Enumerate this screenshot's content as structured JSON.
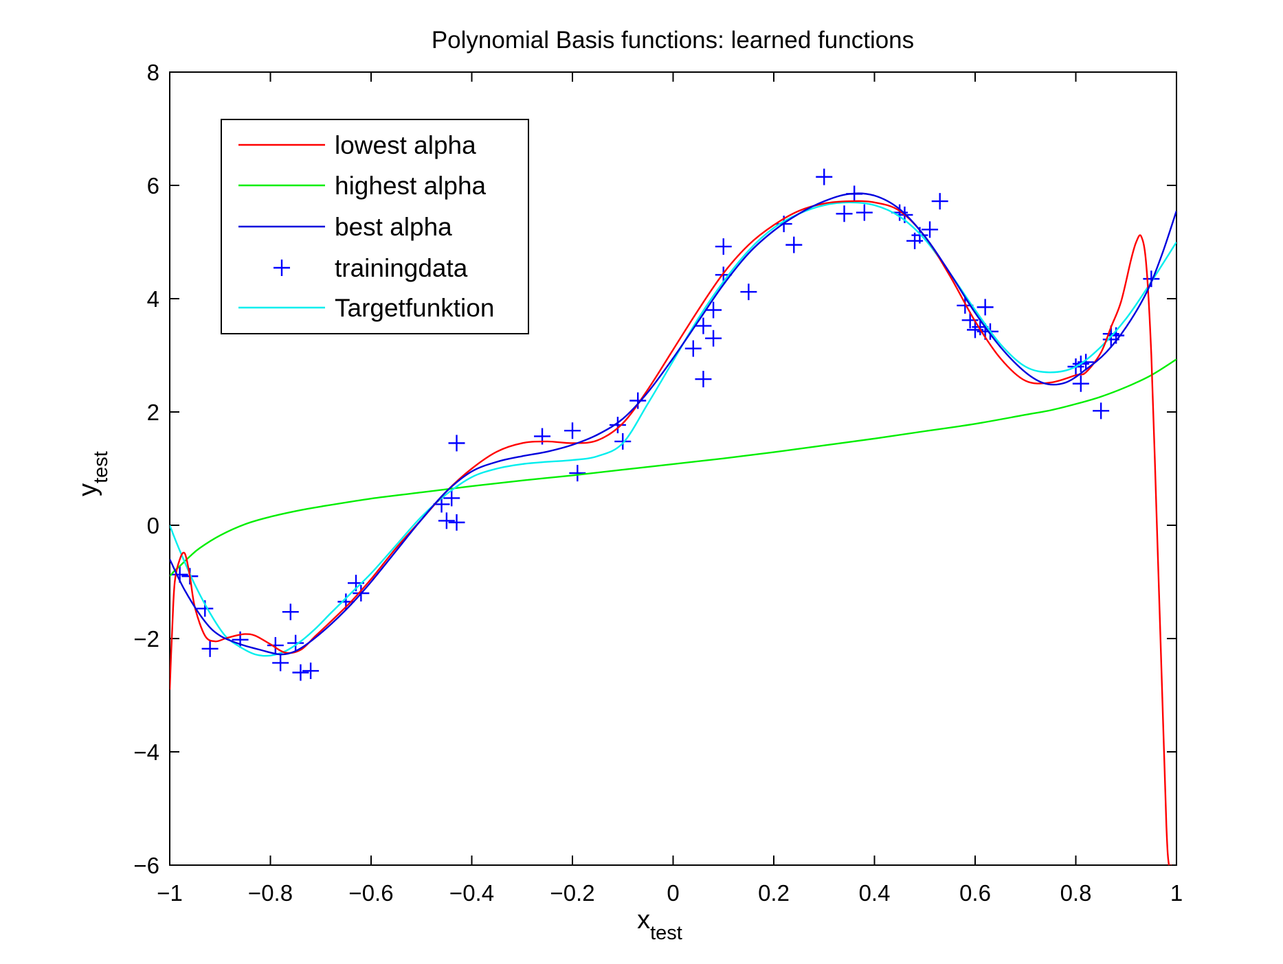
{
  "chart_data": {
    "type": "line",
    "title": "Polynomial Basis functions: learned functions",
    "xlabel": {
      "main": "x",
      "sub": "test"
    },
    "ylabel": {
      "main": "y",
      "sub": "test"
    },
    "xlim": [
      -1,
      1
    ],
    "ylim": [
      -6,
      8
    ],
    "xticks": [
      -1,
      -0.8,
      -0.6,
      -0.4,
      -0.2,
      0,
      0.2,
      0.4,
      0.6,
      0.8,
      1
    ],
    "xtick_labels": [
      "−1",
      "−0.8",
      "−0.6",
      "−0.4",
      "−0.2",
      "0",
      "0.2",
      "0.4",
      "0.6",
      "0.8",
      "1"
    ],
    "yticks": [
      -6,
      -4,
      -2,
      0,
      2,
      4,
      6,
      8
    ],
    "ytick_labels": [
      "−6",
      "−4",
      "−2",
      "0",
      "2",
      "4",
      "6",
      "8"
    ],
    "grid": false,
    "legend_position": "top-left",
    "series": [
      {
        "name": "lowest alpha",
        "style": "line",
        "color": "#ff0000",
        "x": [
          -1.0,
          -0.995,
          -0.99,
          -0.98,
          -0.97,
          -0.96,
          -0.95,
          -0.93,
          -0.91,
          -0.89,
          -0.87,
          -0.85,
          -0.83,
          -0.8,
          -0.77,
          -0.74,
          -0.71,
          -0.68,
          -0.64,
          -0.6,
          -0.55,
          -0.5,
          -0.45,
          -0.4,
          -0.35,
          -0.3,
          -0.25,
          -0.2,
          -0.15,
          -0.1,
          -0.05,
          0.0,
          0.05,
          0.1,
          0.15,
          0.2,
          0.25,
          0.3,
          0.35,
          0.4,
          0.45,
          0.5,
          0.55,
          0.6,
          0.65,
          0.7,
          0.75,
          0.8,
          0.82,
          0.85,
          0.87,
          0.89,
          0.91,
          0.92,
          0.93,
          0.94,
          0.95,
          0.96,
          0.97,
          0.98,
          0.985,
          0.99
        ],
        "y": [
          -2.9,
          -1.8,
          -1.0,
          -0.6,
          -0.5,
          -0.9,
          -1.45,
          -1.95,
          -2.05,
          -2.0,
          -1.95,
          -1.92,
          -1.95,
          -2.1,
          -2.25,
          -2.2,
          -1.95,
          -1.7,
          -1.35,
          -0.95,
          -0.4,
          0.1,
          0.6,
          1.0,
          1.3,
          1.45,
          1.48,
          1.45,
          1.5,
          1.8,
          2.4,
          3.1,
          3.8,
          4.45,
          4.95,
          5.3,
          5.55,
          5.68,
          5.72,
          5.7,
          5.55,
          5.1,
          4.4,
          3.6,
          2.95,
          2.55,
          2.52,
          2.65,
          2.7,
          3.05,
          3.5,
          3.95,
          4.7,
          5.0,
          5.1,
          4.6,
          3.0,
          0.3,
          -2.5,
          -5.3,
          -6.0,
          -6.0
        ]
      },
      {
        "name": "highest alpha",
        "style": "line",
        "color": "#00ee00",
        "x": [
          -1.0,
          -0.99,
          -0.98,
          -0.96,
          -0.94,
          -0.9,
          -0.85,
          -0.8,
          -0.75,
          -0.7,
          -0.6,
          -0.5,
          -0.4,
          -0.3,
          -0.2,
          -0.1,
          0.0,
          0.1,
          0.2,
          0.3,
          0.4,
          0.5,
          0.6,
          0.7,
          0.75,
          0.8,
          0.85,
          0.9,
          0.95,
          1.0
        ],
        "y": [
          -0.9,
          -0.8,
          -0.72,
          -0.55,
          -0.4,
          -0.18,
          0.02,
          0.15,
          0.25,
          0.33,
          0.47,
          0.58,
          0.69,
          0.79,
          0.88,
          0.98,
          1.08,
          1.18,
          1.29,
          1.41,
          1.53,
          1.66,
          1.79,
          1.95,
          2.03,
          2.14,
          2.27,
          2.44,
          2.65,
          2.93
        ]
      },
      {
        "name": "best alpha",
        "style": "line",
        "color": "#0000dd",
        "x": [
          -1.0,
          -0.97,
          -0.93,
          -0.9,
          -0.86,
          -0.82,
          -0.78,
          -0.75,
          -0.72,
          -0.68,
          -0.64,
          -0.6,
          -0.55,
          -0.5,
          -0.45,
          -0.4,
          -0.35,
          -0.3,
          -0.25,
          -0.2,
          -0.15,
          -0.1,
          -0.05,
          0.0,
          0.05,
          0.1,
          0.15,
          0.2,
          0.25,
          0.3,
          0.35,
          0.4,
          0.45,
          0.5,
          0.55,
          0.6,
          0.65,
          0.7,
          0.74,
          0.78,
          0.82,
          0.86,
          0.9,
          0.94,
          0.97,
          1.0
        ],
        "y": [
          -0.6,
          -1.15,
          -1.7,
          -1.95,
          -2.1,
          -2.2,
          -2.28,
          -2.22,
          -2.05,
          -1.75,
          -1.4,
          -1.0,
          -0.45,
          0.1,
          0.6,
          0.95,
          1.12,
          1.22,
          1.3,
          1.42,
          1.6,
          1.88,
          2.35,
          2.95,
          3.6,
          4.25,
          4.8,
          5.2,
          5.5,
          5.72,
          5.85,
          5.82,
          5.58,
          5.1,
          4.45,
          3.75,
          3.15,
          2.7,
          2.5,
          2.52,
          2.75,
          3.05,
          3.5,
          4.1,
          4.75,
          5.55
        ]
      },
      {
        "name": "trainingdata",
        "style": "marker",
        "marker": "+",
        "color": "#0000ff",
        "x": [
          -0.98,
          -0.96,
          -0.93,
          -0.92,
          -0.86,
          -0.79,
          -0.78,
          -0.76,
          -0.75,
          -0.74,
          -0.72,
          -0.65,
          -0.63,
          -0.62,
          -0.46,
          -0.45,
          -0.44,
          -0.43,
          -0.43,
          -0.26,
          -0.2,
          -0.19,
          -0.11,
          -0.1,
          -0.07,
          0.04,
          0.06,
          0.06,
          0.08,
          0.08,
          0.1,
          0.1,
          0.15,
          0.22,
          0.24,
          0.3,
          0.34,
          0.36,
          0.38,
          0.45,
          0.46,
          0.48,
          0.49,
          0.51,
          0.53,
          0.58,
          0.59,
          0.6,
          0.61,
          0.62,
          0.62,
          0.63,
          0.8,
          0.81,
          0.81,
          0.82,
          0.85,
          0.87,
          0.87,
          0.88,
          0.95
        ],
        "y": [
          -0.87,
          -0.9,
          -1.47,
          -2.18,
          -2.02,
          -2.12,
          -2.43,
          -1.53,
          -2.08,
          -2.6,
          -2.57,
          -1.35,
          -1.02,
          -1.2,
          0.37,
          0.08,
          0.48,
          0.05,
          1.45,
          1.57,
          1.67,
          0.92,
          1.77,
          1.48,
          2.2,
          3.12,
          2.58,
          3.52,
          3.8,
          3.3,
          4.42,
          4.92,
          4.12,
          5.32,
          4.95,
          6.15,
          5.5,
          5.85,
          5.52,
          5.52,
          5.48,
          5.02,
          5.12,
          5.22,
          5.72,
          3.88,
          3.62,
          3.45,
          3.5,
          3.85,
          3.42,
          3.42,
          2.8,
          2.5,
          2.85,
          2.88,
          2.02,
          3.28,
          3.38,
          3.35,
          4.35
        ]
      },
      {
        "name": "Targetfunktion",
        "style": "line",
        "color": "#00eeee",
        "x": [
          -1.0,
          -0.98,
          -0.95,
          -0.92,
          -0.89,
          -0.86,
          -0.83,
          -0.8,
          -0.77,
          -0.74,
          -0.71,
          -0.68,
          -0.64,
          -0.6,
          -0.55,
          -0.5,
          -0.45,
          -0.4,
          -0.35,
          -0.3,
          -0.25,
          -0.2,
          -0.15,
          -0.1,
          -0.05,
          0.0,
          0.05,
          0.1,
          0.15,
          0.2,
          0.25,
          0.3,
          0.35,
          0.4,
          0.45,
          0.5,
          0.55,
          0.6,
          0.65,
          0.7,
          0.75,
          0.8,
          0.85,
          0.9,
          0.95,
          1.0
        ],
        "y": [
          0.0,
          -0.45,
          -1.05,
          -1.55,
          -1.95,
          -2.15,
          -2.28,
          -2.3,
          -2.22,
          -2.05,
          -1.82,
          -1.55,
          -1.2,
          -0.85,
          -0.35,
          0.15,
          0.55,
          0.85,
          1.0,
          1.08,
          1.12,
          1.15,
          1.22,
          1.45,
          2.15,
          2.9,
          3.65,
          4.3,
          4.85,
          5.25,
          5.5,
          5.65,
          5.7,
          5.65,
          5.45,
          5.05,
          4.45,
          3.8,
          3.2,
          2.8,
          2.7,
          2.8,
          3.15,
          3.65,
          4.3,
          5.0
        ]
      }
    ]
  }
}
